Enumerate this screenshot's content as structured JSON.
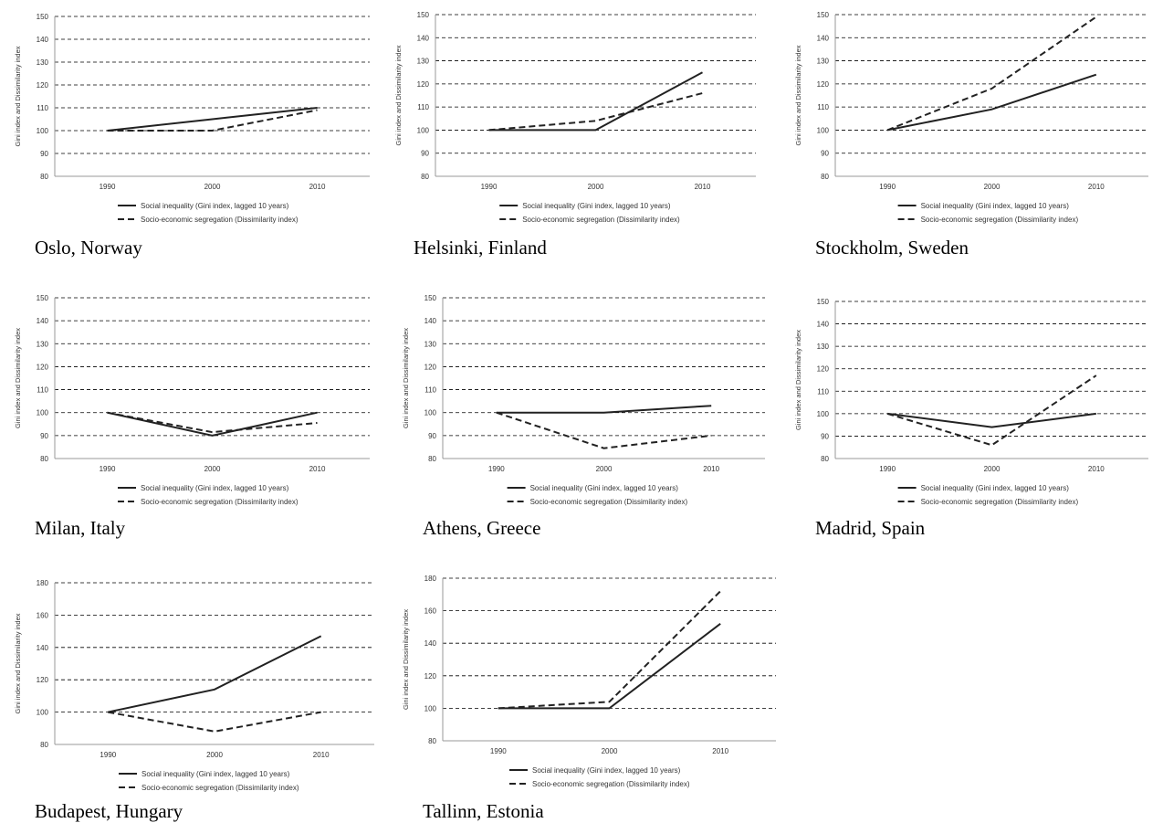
{
  "y_axis_label": "Gini index and Dissimilarity index",
  "x_categories": [
    "1990",
    "2000",
    "2010"
  ],
  "legend": {
    "gini": "Social inequality (Gini index, lagged 10 years)",
    "dissimilarity": "Socio-economic segregation (Dissimilarity index)"
  },
  "colors": {
    "line": "#222222",
    "grid": "#000000",
    "axis": "#999999",
    "text": "#333333"
  },
  "chart_data": [
    {
      "type": "line",
      "title": "Oslo, Norway",
      "categories": [
        "1990",
        "2000",
        "2010"
      ],
      "ylim": [
        80,
        150
      ],
      "yticks": [
        80,
        90,
        100,
        110,
        120,
        130,
        140,
        150
      ],
      "grid": true,
      "legend_placement": "bottom",
      "series": [
        {
          "name": "Social inequality (Gini index, lagged 10 years)",
          "style": "solid",
          "values": [
            100,
            105,
            110
          ]
        },
        {
          "name": "Socio-economic segregation (Dissimilarity index)",
          "style": "dashed",
          "values": [
            100,
            100,
            109
          ]
        }
      ]
    },
    {
      "type": "line",
      "title": "Helsinki, Finland",
      "categories": [
        "1990",
        "2000",
        "2010"
      ],
      "ylim": [
        80,
        150
      ],
      "yticks": [
        80,
        90,
        100,
        110,
        120,
        130,
        140,
        150
      ],
      "grid": true,
      "legend_placement": "bottom",
      "series": [
        {
          "name": "Social inequality (Gini index, lagged 10 years)",
          "style": "solid",
          "values": [
            100,
            100,
            125
          ]
        },
        {
          "name": "Socio-economic segregation (Dissimilarity index)",
          "style": "dashed",
          "values": [
            100,
            104,
            116
          ]
        }
      ]
    },
    {
      "type": "line",
      "title": "Stockholm, Sweden",
      "categories": [
        "1990",
        "2000",
        "2010"
      ],
      "ylim": [
        80,
        150
      ],
      "yticks": [
        80,
        90,
        100,
        110,
        120,
        130,
        140,
        150
      ],
      "grid": true,
      "legend_placement": "bottom",
      "series": [
        {
          "name": "Social inequality (Gini index, lagged 10 years)",
          "style": "solid",
          "values": [
            100,
            109,
            124
          ]
        },
        {
          "name": "Socio-economic segregation (Dissimilarity index)",
          "style": "dashed",
          "values": [
            100,
            118,
            149
          ]
        }
      ]
    },
    {
      "type": "line",
      "title": "Milan, Italy",
      "categories": [
        "1990",
        "2000",
        "2010"
      ],
      "ylim": [
        80,
        150
      ],
      "yticks": [
        80,
        90,
        100,
        110,
        120,
        130,
        140,
        150
      ],
      "grid": true,
      "legend_placement": "bottom",
      "series": [
        {
          "name": "Social inequality (Gini index, lagged 10 years)",
          "style": "solid",
          "values": [
            100,
            90,
            100
          ]
        },
        {
          "name": "Socio-economic segregation (Dissimilarity index)",
          "style": "dashed",
          "values": [
            100,
            91.5,
            95.5
          ]
        }
      ]
    },
    {
      "type": "line",
      "title": "Athens, Greece",
      "categories": [
        "1990",
        "2000",
        "2010"
      ],
      "ylim": [
        80,
        150
      ],
      "yticks": [
        80,
        90,
        100,
        110,
        120,
        130,
        140,
        150
      ],
      "grid": true,
      "legend_placement": "bottom",
      "series": [
        {
          "name": "Social inequality (Gini index, lagged 10 years)",
          "style": "solid",
          "values": [
            100,
            100,
            103
          ]
        },
        {
          "name": "Socio-economic segregation (Dissimilarity index)",
          "style": "dashed",
          "values": [
            100,
            84.5,
            90
          ]
        }
      ]
    },
    {
      "type": "line",
      "title": "Madrid, Spain",
      "categories": [
        "1990",
        "2000",
        "2010"
      ],
      "ylim": [
        80,
        150
      ],
      "yticks": [
        80,
        90,
        100,
        110,
        120,
        130,
        140,
        150
      ],
      "grid": true,
      "legend_placement": "bottom",
      "series": [
        {
          "name": "Social inequality (Gini index, lagged 10 years)",
          "style": "solid",
          "values": [
            100,
            94,
            100
          ]
        },
        {
          "name": "Socio-economic segregation (Dissimilarity index)",
          "style": "dashed",
          "values": [
            100,
            86,
            117
          ]
        }
      ]
    },
    {
      "type": "line",
      "title": "Budapest, Hungary",
      "categories": [
        "1990",
        "2000",
        "2010"
      ],
      "ylim": [
        80,
        180
      ],
      "yticks": [
        80,
        100,
        120,
        140,
        160,
        180
      ],
      "grid": true,
      "legend_placement": "bottom",
      "series": [
        {
          "name": "Social inequality (Gini index, lagged 10 years)",
          "style": "solid",
          "values": [
            100,
            114,
            147
          ]
        },
        {
          "name": "Socio-economic segregation (Dissimilarity index)",
          "style": "dashed",
          "values": [
            100,
            88,
            100
          ]
        }
      ]
    },
    {
      "type": "line",
      "title": "Tallinn, Estonia",
      "categories": [
        "1990",
        "2000",
        "2010"
      ],
      "ylim": [
        80,
        180
      ],
      "yticks": [
        80,
        100,
        120,
        140,
        160,
        180
      ],
      "grid": true,
      "legend_placement": "bottom",
      "series": [
        {
          "name": "Social inequality (Gini index, lagged 10 years)",
          "style": "solid",
          "values": [
            100,
            100,
            152
          ]
        },
        {
          "name": "Socio-economic segregation (Dissimilarity index)",
          "style": "dashed",
          "values": [
            100,
            104,
            172
          ]
        }
      ]
    }
  ]
}
